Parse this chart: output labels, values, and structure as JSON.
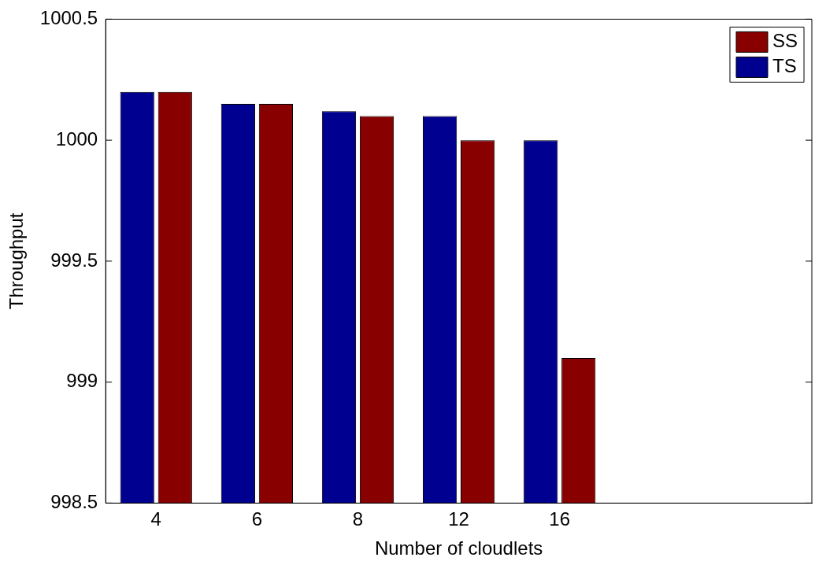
{
  "chart_data": {
    "type": "bar",
    "xlabel": "Number of cloudlets",
    "ylabel": "Throughput",
    "categories": [
      "4",
      "6",
      "8",
      "12",
      "16",
      null,
      null
    ],
    "series": [
      {
        "name": "TS",
        "color": "#000090",
        "values": [
          1000.2,
          1000.15,
          1000.12,
          1000.1,
          1000,
          null,
          null
        ]
      },
      {
        "name": "SS",
        "color": "#880000",
        "values": [
          1000.2,
          1000.15,
          1000.1,
          1000,
          999.1,
          null,
          null
        ]
      }
    ],
    "ylim": [
      998.5,
      1000.5
    ],
    "yticks": [
      998.5,
      999,
      999.5,
      1000,
      1000.5
    ],
    "grid": false,
    "legend": "top right"
  }
}
